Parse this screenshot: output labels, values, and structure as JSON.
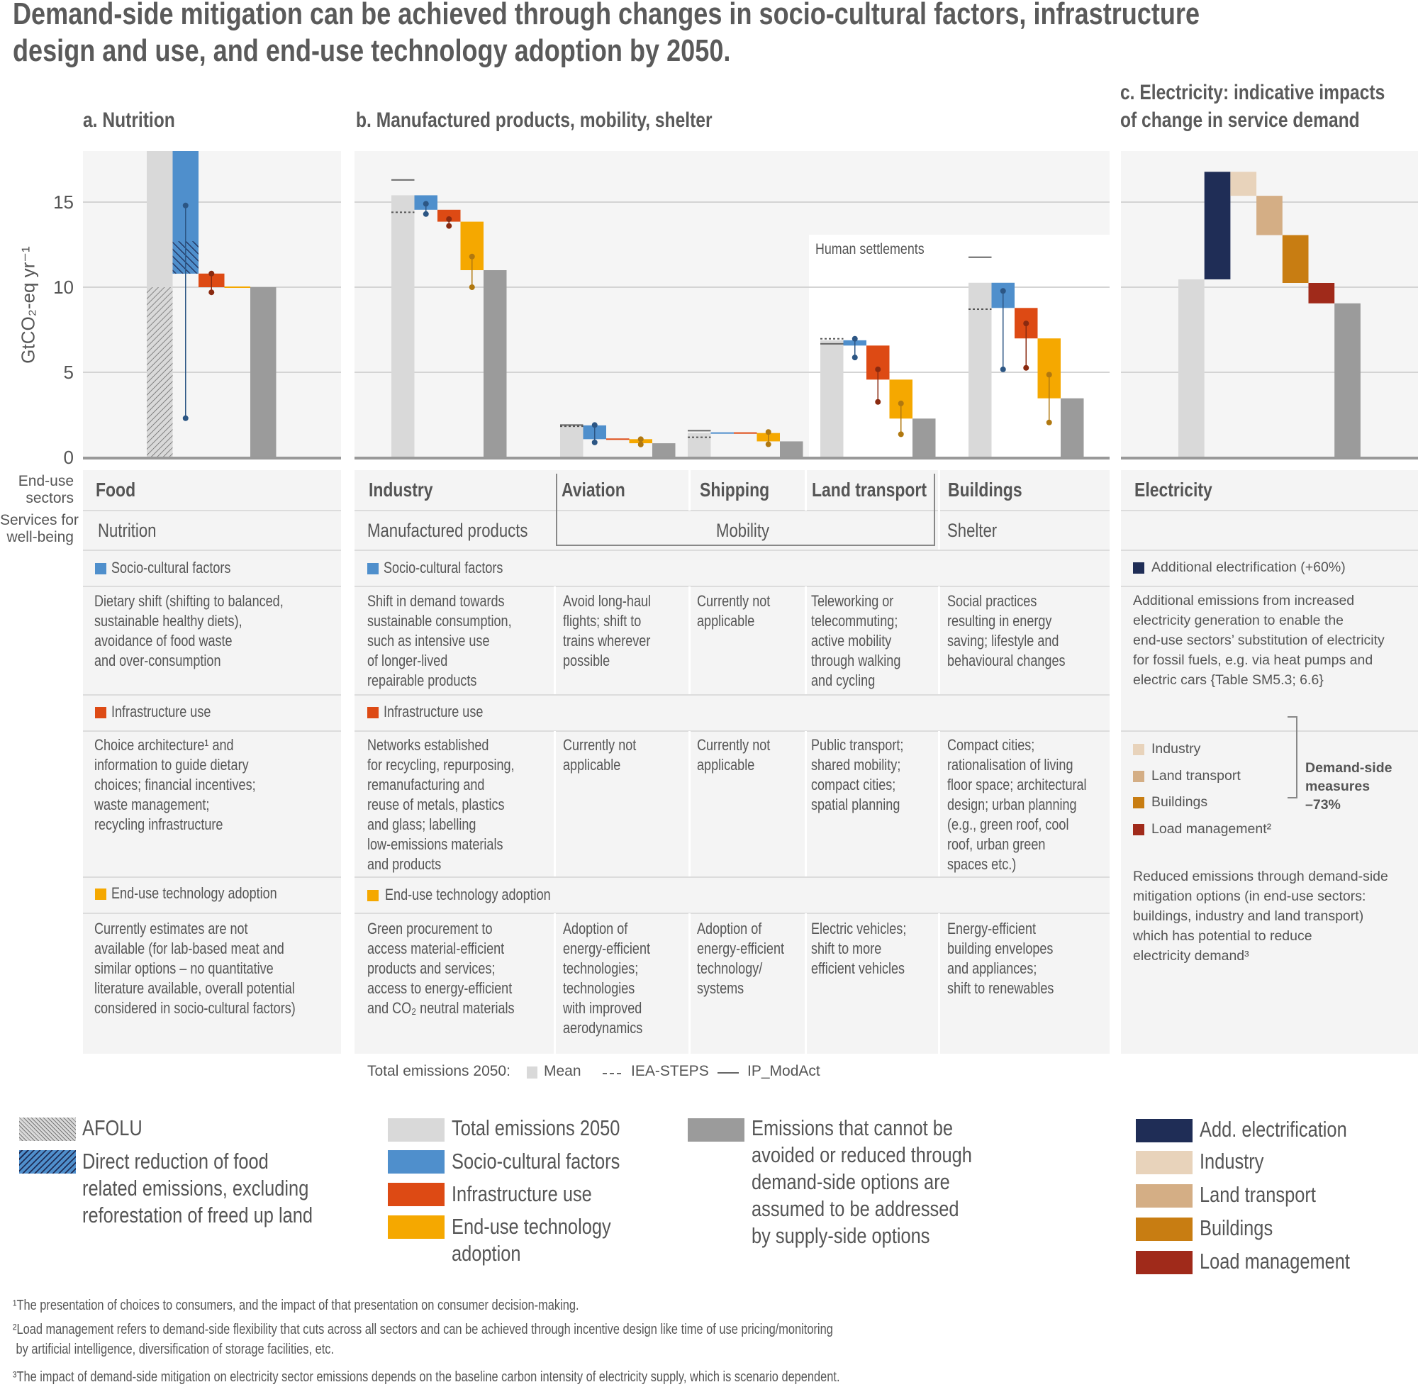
{
  "title": {
    "line1": "Demand-side mitigation can be achieved through changes in socio-cultural factors, infrastructure",
    "line2": "design and use, and end-use technology adoption by 2050."
  },
  "panels": {
    "a": "a. Nutrition",
    "b": "b. Manufactured products, mobility, shelter",
    "c_line1": "c. Electricity: indicative impacts",
    "c_line2": "of change in service demand"
  },
  "human_settlements": "Human settlements",
  "table": {
    "row_labels": {
      "sectors": "End-use\nsectors",
      "services": "Services for\nwell-being"
    },
    "sectors": {
      "food": "Food",
      "industry": "Industry",
      "aviation": "Aviation",
      "shipping": "Shipping",
      "land_transport": "Land transport",
      "buildings": "Buildings",
      "electricity": "Electricity"
    },
    "services": {
      "nutrition": "Nutrition",
      "manufactured_products": "Manufactured products",
      "mobility": "Mobility",
      "shelter": "Shelter"
    },
    "categories": {
      "socio": "Socio-cultural factors",
      "infra": "Infrastructure use",
      "tech": "End-use technology adoption"
    },
    "socio": {
      "food": "Dietary shift (shifting to balanced,\nsustainable healthy diets),\navoidance of food waste\nand over-consumption",
      "industry": "Shift in demand towards\nsustainable consumption,\nsuch as intensive use\nof longer-lived\nrepairable products",
      "aviation": "Avoid long-haul\nflights; shift to\ntrains wherever\npossible",
      "shipping": "Currently not\napplicable",
      "land_transport": "Teleworking or\ntelecommuting;\nactive mobility\nthrough walking\nand cycling",
      "buildings": "Social practices\nresulting in energy\nsaving; lifestyle and\nbehavioural changes"
    },
    "infra": {
      "food": "Choice architecture¹ and\ninformation to guide dietary\nchoices; financial incentives;\nwaste management;\nrecycling infrastructure",
      "industry": "Networks established\nfor recycling, repurposing,\nremanufacturing and\nreuse of metals, plastics\nand glass; labelling\nlow-emissions materials\nand products",
      "aviation": "Currently not\napplicable",
      "shipping": "Currently not\napplicable",
      "land_transport": "Public transport;\nshared mobility;\ncompact cities;\nspatial planning",
      "buildings": "Compact cities;\nrationalisation of living\nfloor space; architectural\ndesign; urban planning\n(e.g., green roof, cool\nroof, urban green\nspaces etc.)"
    },
    "tech": {
      "food": "Currently estimates are not\navailable (for lab-based meat and\nsimilar options – no quantitative\nliterature available, overall potential\nconsidered in socio-cultural factors)",
      "industry": "Green procurement to\naccess material-efficient\nproducts and services;\naccess to energy-efficient\nand CO₂ neutral materials",
      "aviation": "Adoption of\nenergy-efficient\ntechnologies;\ntechnologies\nwith improved\naerodynamics",
      "shipping": "Adoption of\nenergy-efficient\ntechnology/\nsystems",
      "land_transport": "Electric vehicles;\nshift to more\nefficient vehicles",
      "buildings": "Energy-efficient\nbuilding envelopes\nand appliances;\nshift to renewables"
    }
  },
  "electricity": {
    "add_label": "Additional electrification (+60%)",
    "add_text": "Additional emissions from increased\nelectricity generation to enable the\nend-use sectors’ substitution of electricity\nfor fossil fuels, e.g. via heat pumps and\nelectric cars {Table SM5.3; 6.6}",
    "legend": [
      "Industry",
      "Land transport",
      "Buildings",
      "Load management²"
    ],
    "bracket_label": "Demand-side\nmeasures\n–73%",
    "reduced_text": "Reduced emissions through demand-side\nmitigation options (in end-use sectors:\nbuildings, industry and land transport)\nwhich has potential to reduce\nelectricity demand³"
  },
  "total_legend": {
    "label": "Total emissions 2050:",
    "mean": "Mean",
    "iea": "IEA-STEPS",
    "ip": "IP_ModAct"
  },
  "bottom_legend": {
    "afolu": "AFOLU",
    "direct": "Direct reduction of food\nrelated emissions, excluding\nreforestation of freed up land",
    "total": "Total emissions 2050",
    "socio": "Socio-cultural factors",
    "infra": "Infrastructure use",
    "tech": "End-use technology\nadoption",
    "residual": "Emissions that cannot be\navoided or reduced through\ndemand-side options are\nassumed to be addressed\nby supply-side options",
    "add_elec": "Add. electrification",
    "industry": "Industry",
    "land_transport": "Land transport",
    "buildings": "Buildings",
    "load": "Load management"
  },
  "footnotes": [
    "¹The presentation of choices to consumers, and the impact of that presentation on consumer decision-making.",
    "²Load management refers to demand-side flexibility that cuts across all sectors and can be achieved through incentive design like time of use pricing/monitoring\n by artificial intelligence, diversification of storage facilities, etc.",
    "³The impact of demand-side mitigation on electricity sector emissions depends on the baseline carbon intensity of electricity supply, which is scenario dependent."
  ],
  "colors": {
    "total": "#d9d9d9",
    "residual": "#9b9b9b",
    "socio": "#4f8fcc",
    "infra": "#dd4a14",
    "tech": "#f5a800",
    "socio_dark": "#2c5684",
    "infra_dark": "#8a2a10",
    "tech_dark": "#b07810",
    "add_electrification": "#1f2d56",
    "industry": "#e8d3bb",
    "land_transport": "#d4ae85",
    "buildings": "#c87d12",
    "load_management": "#a02a1a",
    "text": "#555555",
    "panel_bg": "#f4f4f4"
  },
  "chart_data": {
    "type": "bar",
    "subtype": "waterfall",
    "title": "",
    "ylabel": "GtCO₂-eq yr⁻¹",
    "ylim": [
      0,
      18
    ],
    "yticks": [
      "0",
      "5",
      "10",
      "15"
    ],
    "grid": true,
    "panels": [
      {
        "id": "a",
        "title": "a. Nutrition",
        "sectors": [
          {
            "name": "Food",
            "total": 18,
            "afolu": 10,
            "steps": [
              {
                "type": "socio",
                "to": 10.8,
                "range": [
                  14.8,
                  2.3
                ],
                "direct_food_reduction": [
                  12.7,
                  10.8
                ]
              },
              {
                "type": "infra",
                "to": 10.0,
                "range": [
                  10.8,
                  9.7
                ]
              },
              {
                "type": "tech",
                "to": 10.0
              }
            ],
            "residual": 10.0
          }
        ]
      },
      {
        "id": "b",
        "title": "b. Manufactured products, mobility, shelter",
        "sectors": [
          {
            "name": "Industry",
            "total": 15.4,
            "iea_steps": 14.4,
            "ip_modact": 16.3,
            "steps": [
              {
                "type": "socio",
                "to": 14.55,
                "range": [
                  14.9,
                  14.3
                ]
              },
              {
                "type": "infra",
                "to": 13.85,
                "range": [
                  14.0,
                  13.6
                ]
              },
              {
                "type": "tech",
                "to": 11.0,
                "range": [
                  11.8,
                  10.0
                ]
              }
            ],
            "residual": 11.0
          },
          {
            "name": "Aviation",
            "total": 1.88,
            "iea_steps": 1.83,
            "ip_modact": 1.9,
            "steps": [
              {
                "type": "socio",
                "to": 1.07,
                "range": [
                  1.9,
                  0.88
                ]
              },
              {
                "type": "infra",
                "to": 1.07
              },
              {
                "type": "tech",
                "to": 0.83,
                "range": [
                  1.07,
                  0.76
                ]
              }
            ],
            "residual": 0.83
          },
          {
            "name": "Shipping",
            "total": 1.43,
            "iea_steps": 1.18,
            "ip_modact": 1.57,
            "steps": [
              {
                "type": "socio",
                "to": 1.43
              },
              {
                "type": "infra",
                "to": 1.43
              },
              {
                "type": "tech",
                "to": 0.94,
                "range": [
                  1.49,
                  0.77
                ]
              }
            ],
            "residual": 0.94
          },
          {
            "name": "Land transport",
            "total": 6.88,
            "iea_steps": 6.97,
            "ip_modact": 6.67,
            "steps": [
              {
                "type": "socio",
                "to": 6.57,
                "range": [
                  6.97,
                  5.87
                ]
              },
              {
                "type": "infra",
                "to": 4.57,
                "range": [
                  5.17,
                  3.26
                ]
              },
              {
                "type": "tech",
                "to": 2.28,
                "range": [
                  3.17,
                  1.36
                ]
              }
            ],
            "residual": 2.28
          },
          {
            "name": "Buildings",
            "total": 10.26,
            "iea_steps": 8.71,
            "ip_modact": 11.76,
            "steps": [
              {
                "type": "socio",
                "to": 8.78,
                "range": [
                  9.78,
                  5.17
                ]
              },
              {
                "type": "infra",
                "to": 6.99,
                "range": [
                  7.87,
                  5.26
                ]
              },
              {
                "type": "tech",
                "to": 3.47,
                "range": [
                  4.86,
                  2.05
                ]
              }
            ],
            "residual": 3.47
          }
        ]
      },
      {
        "id": "c",
        "title": "c. Electricity: indicative impacts of change in service demand",
        "sectors": [
          {
            "name": "Electricity",
            "total": 10.46,
            "steps": [
              {
                "type": "add_electrification",
                "to": 16.78
              },
              {
                "type": "industry",
                "to": 15.37
              },
              {
                "type": "land_transport",
                "to": 13.06
              },
              {
                "type": "buildings",
                "to": 10.25
              },
              {
                "type": "load_management",
                "to": 9.05
              }
            ],
            "residual": 9.05
          }
        ]
      }
    ]
  }
}
